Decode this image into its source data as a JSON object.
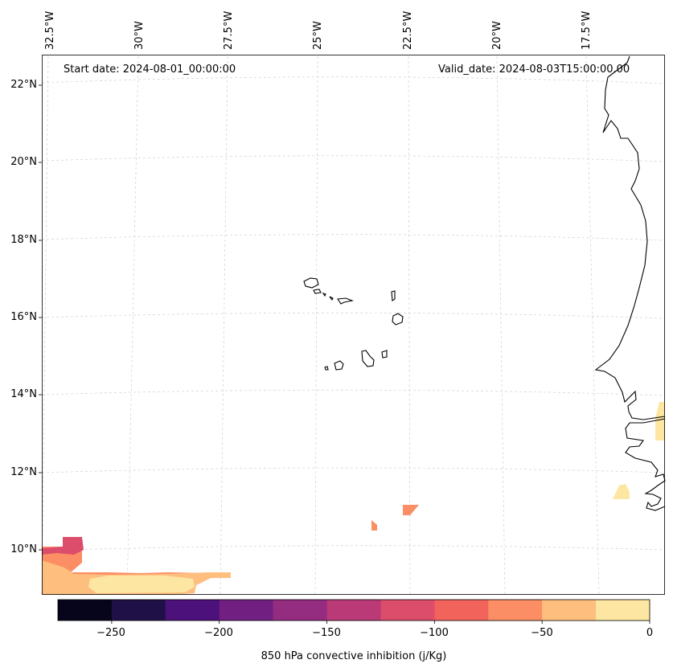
{
  "map": {
    "start_date": "Start date: 2024-08-01_00:00:00",
    "valid_date": "Valid_date: 2024-08-03T15:00:00.00",
    "lon_labels": [
      "32.5°W",
      "30°W",
      "27.5°W",
      "25°W",
      "22.5°W",
      "20°W",
      "17.5°W"
    ],
    "lat_labels": [
      "22°N",
      "20°N",
      "18°N",
      "16°N",
      "14°N",
      "12°N",
      "10°N"
    ]
  },
  "colorbar": {
    "label": "850 hPa convective inhibition (j/Kg)",
    "ticks": [
      "−250",
      "−200",
      "−150",
      "−100",
      "−50",
      "0"
    ],
    "levels": [
      -275,
      -250,
      -225,
      -200,
      -175,
      -150,
      -125,
      -100,
      -75,
      -50,
      -25,
      0
    ],
    "colors": [
      "#06051b",
      "#1f1148",
      "#4d117b",
      "#711f81",
      "#942c80",
      "#b93a76",
      "#dc4c6b",
      "#f2635c",
      "#fb8e64",
      "#febe7e",
      "#fde6a2"
    ]
  }
}
